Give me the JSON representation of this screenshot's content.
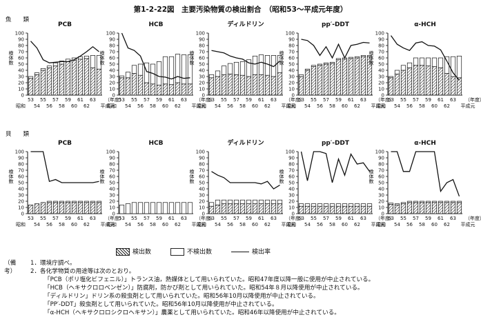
{
  "figure_title": "第1-2-22図　主要汚染物質の検出割合　（昭和53～平成元年度）",
  "groups": [
    "魚　　類",
    "貝　　類"
  ],
  "legend": {
    "detected": "検出数",
    "not_detected": "不検出数",
    "rate": "検出率"
  },
  "notes": {
    "header": "（備考）",
    "lines": [
      "1．環境庁調べ。",
      "2．各化学物質の用途等は次のとおり。",
      "「PCB（ポリ塩化ビフェニル）」トランス油，熱媒体として用いられていた。昭和47年度以降一般に使用が中止されている。",
      "「HCB（ヘキサクロロベンゼン）」防腐剤，防かび剤として用いられていた。昭和54年８月以降使用が中止されている。",
      "「ディルドリン」ドリン系の殺虫剤として用いられていた。昭和56年10月以降使用が中止されている。",
      "「PP′-DDT」殺虫剤として用いられていた。昭和56年10月以降使用が中止されている。",
      "「α-HCH（ヘキサクロロシクロヘキサン）」農薬として用いられていた。昭和46年以降使用が中止されている。"
    ]
  },
  "axis_text": {
    "y_left_label": "検体数（検体）",
    "y_right_label": "検出率（%）",
    "x_top_labels": [
      "53",
      "55",
      "57",
      "59",
      "61",
      "63"
    ],
    "x_bottom_labels": [
      "54",
      "56",
      "58",
      "60",
      "62"
    ],
    "x_unit": "（年度）",
    "x_prefix": "昭和",
    "x_last": "平成元",
    "y_ticks": [
      0,
      10,
      20,
      30,
      40,
      50,
      60,
      70,
      80,
      90,
      100
    ]
  },
  "chart_data": [
    {
      "type": "bar",
      "group": "魚類",
      "title": "PCB",
      "categories": [
        "53",
        "54",
        "55",
        "56",
        "57",
        "58",
        "59",
        "60",
        "61",
        "62",
        "63",
        "平成元"
      ],
      "ylim": [
        0,
        100
      ],
      "series": [
        {
          "name": "検出数",
          "values": [
            27,
            33,
            40,
            44,
            47,
            50,
            54,
            56,
            58,
            59,
            44,
            42
          ]
        },
        {
          "name": "不検出数",
          "values": [
            3,
            3,
            3,
            3,
            5,
            5,
            4,
            4,
            4,
            4,
            20,
            22
          ]
        },
        {
          "name": "検出率",
          "values": [
            87,
            76,
            57,
            52,
            53,
            54,
            54,
            57,
            63,
            70,
            78,
            70
          ]
        }
      ]
    },
    {
      "type": "bar",
      "group": "魚類",
      "title": "HCB",
      "categories": [
        "53",
        "54",
        "55",
        "56",
        "57",
        "58",
        "59",
        "60",
        "61",
        "62",
        "63",
        "平成元"
      ],
      "ylim": [
        0,
        100
      ],
      "series": [
        {
          "name": "検出数",
          "values": [
            28,
            28,
            35,
            32,
            20,
            18,
            16,
            18,
            17,
            20,
            18,
            18
          ]
        },
        {
          "name": "不検出数",
          "values": [
            3,
            9,
            13,
            18,
            32,
            32,
            38,
            44,
            45,
            46,
            47,
            47
          ]
        },
        {
          "name": "検出率",
          "values": [
            100,
            76,
            72,
            63,
            38,
            35,
            30,
            29,
            26,
            30,
            27,
            28
          ]
        }
      ]
    },
    {
      "type": "bar",
      "group": "魚類",
      "title": "ディルドリン",
      "categories": [
        "53",
        "54",
        "55",
        "56",
        "57",
        "58",
        "59",
        "60",
        "61",
        "62",
        "63",
        "平成元"
      ],
      "ylim": [
        0,
        100
      ],
      "series": [
        {
          "name": "検出数",
          "values": [
            28,
            30,
            33,
            34,
            33,
            32,
            30,
            33,
            33,
            32,
            30,
            36
          ]
        },
        {
          "name": "不検出数",
          "values": [
            5,
            9,
            14,
            17,
            20,
            22,
            27,
            30,
            32,
            32,
            34,
            28
          ]
        },
        {
          "name": "検出率",
          "values": [
            72,
            70,
            68,
            63,
            60,
            58,
            52,
            50,
            53,
            50,
            46,
            55
          ]
        }
      ]
    },
    {
      "type": "bar",
      "group": "魚類",
      "title": "pp′-DDT",
      "categories": [
        "53",
        "54",
        "55",
        "56",
        "57",
        "58",
        "59",
        "60",
        "61",
        "62",
        "63",
        "平成元"
      ],
      "ylim": [
        0,
        100
      ],
      "series": [
        {
          "name": "検出数",
          "values": [
            30,
            40,
            46,
            48,
            50,
            51,
            57,
            58,
            59,
            60,
            62,
            62
          ]
        },
        {
          "name": "不検出数",
          "values": [
            3,
            2,
            2,
            2,
            2,
            2,
            2,
            2,
            2,
            2,
            2,
            2
          ]
        },
        {
          "name": "検出率",
          "values": [
            90,
            88,
            80,
            64,
            78,
            60,
            82,
            60,
            80,
            82,
            85,
            84
          ]
        }
      ]
    },
    {
      "type": "bar",
      "group": "魚類",
      "title": "α-HCH",
      "categories": [
        "53",
        "54",
        "55",
        "56",
        "57",
        "58",
        "59",
        "60",
        "61",
        "62",
        "63",
        "平成元"
      ],
      "ylim": [
        0,
        100
      ],
      "series": [
        {
          "name": "検出数",
          "values": [
            28,
            34,
            40,
            44,
            48,
            48,
            47,
            46,
            44,
            35,
            30,
            28
          ]
        },
        {
          "name": "不検出数",
          "values": [
            2,
            6,
            8,
            8,
            12,
            12,
            13,
            14,
            16,
            27,
            32,
            35
          ]
        },
        {
          "name": "検出率",
          "values": [
            96,
            82,
            76,
            72,
            84,
            86,
            80,
            79,
            73,
            55,
            36,
            24
          ]
        }
      ]
    },
    {
      "type": "bar",
      "group": "貝類",
      "title": "PCB",
      "categories": [
        "53",
        "54",
        "55",
        "56",
        "57",
        "58",
        "59",
        "60",
        "61",
        "62",
        "63",
        "平成元"
      ],
      "ylim": [
        0,
        100
      ],
      "series": [
        {
          "name": "検出数",
          "values": [
            14,
            16,
            18,
            18,
            18,
            18,
            18,
            18,
            18,
            18,
            18,
            18
          ]
        },
        {
          "name": "不検出数",
          "values": [
            0,
            0,
            0,
            2,
            2,
            2,
            2,
            2,
            2,
            2,
            2,
            2
          ]
        },
        {
          "name": "検出率",
          "values": [
            100,
            100,
            100,
            52,
            55,
            50,
            50,
            50,
            50,
            50,
            50,
            52
          ]
        }
      ]
    },
    {
      "type": "bar",
      "group": "貝類",
      "title": "HCB",
      "categories": [
        "53",
        "54",
        "55",
        "56",
        "57",
        "58",
        "59",
        "60",
        "61",
        "62",
        "63",
        "平成元"
      ],
      "ylim": [
        0,
        100
      ],
      "series": [
        {
          "name": "検出数",
          "values": [
            0,
            0,
            0,
            0,
            0,
            0,
            0,
            0,
            0,
            0,
            0,
            0
          ]
        },
        {
          "name": "不検出数",
          "values": [
            14,
            16,
            18,
            18,
            18,
            18,
            18,
            18,
            18,
            18,
            18,
            18
          ]
        },
        {
          "name": "検出率",
          "values": [
            0,
            0,
            0,
            0,
            0,
            0,
            0,
            0,
            0,
            0,
            0,
            0
          ]
        }
      ]
    },
    {
      "type": "bar",
      "group": "貝類",
      "title": "ディルドリン",
      "categories": [
        "53",
        "54",
        "55",
        "56",
        "57",
        "58",
        "59",
        "60",
        "61",
        "62",
        "63",
        "平成元"
      ],
      "ylim": [
        0,
        100
      ],
      "series": [
        {
          "name": "検出数",
          "values": [
            12,
            14,
            16,
            16,
            16,
            16,
            16,
            16,
            16,
            16,
            16,
            16
          ]
        },
        {
          "name": "不検出数",
          "values": [
            6,
            8,
            6,
            6,
            6,
            6,
            6,
            6,
            6,
            6,
            6,
            6
          ]
        },
        {
          "name": "検出率",
          "values": [
            68,
            62,
            58,
            50,
            50,
            50,
            50,
            50,
            48,
            52,
            40,
            46
          ]
        }
      ]
    },
    {
      "type": "bar",
      "group": "貝類",
      "title": "pp′-DDT",
      "categories": [
        "53",
        "54",
        "55",
        "56",
        "57",
        "58",
        "59",
        "60",
        "61",
        "62",
        "63",
        "平成元"
      ],
      "ylim": [
        0,
        100
      ],
      "series": [
        {
          "name": "検出数",
          "values": [
            12,
            12,
            12,
            12,
            12,
            12,
            12,
            12,
            12,
            12,
            12,
            12
          ]
        },
        {
          "name": "不検出数",
          "values": [
            4,
            4,
            4,
            4,
            4,
            4,
            4,
            4,
            4,
            4,
            4,
            4
          ]
        },
        {
          "name": "検出率",
          "values": [
            100,
            53,
            100,
            100,
            97,
            50,
            88,
            62,
            96,
            80,
            82,
            68
          ]
        }
      ]
    },
    {
      "type": "bar",
      "group": "貝類",
      "title": "α-HCH",
      "categories": [
        "53",
        "54",
        "55",
        "56",
        "57",
        "58",
        "59",
        "60",
        "61",
        "62",
        "63",
        "平成元"
      ],
      "ylim": [
        0,
        100
      ],
      "series": [
        {
          "name": "検出数",
          "values": [
            15,
            14,
            16,
            18,
            18,
            18,
            18,
            18,
            18,
            18,
            18,
            18
          ]
        },
        {
          "name": "不検出数",
          "values": [
            2,
            2,
            2,
            2,
            2,
            2,
            2,
            2,
            2,
            2,
            2,
            2
          ]
        },
        {
          "name": "検出率",
          "values": [
            100,
            100,
            68,
            68,
            100,
            100,
            100,
            100,
            36,
            50,
            55,
            28
          ]
        }
      ]
    }
  ]
}
